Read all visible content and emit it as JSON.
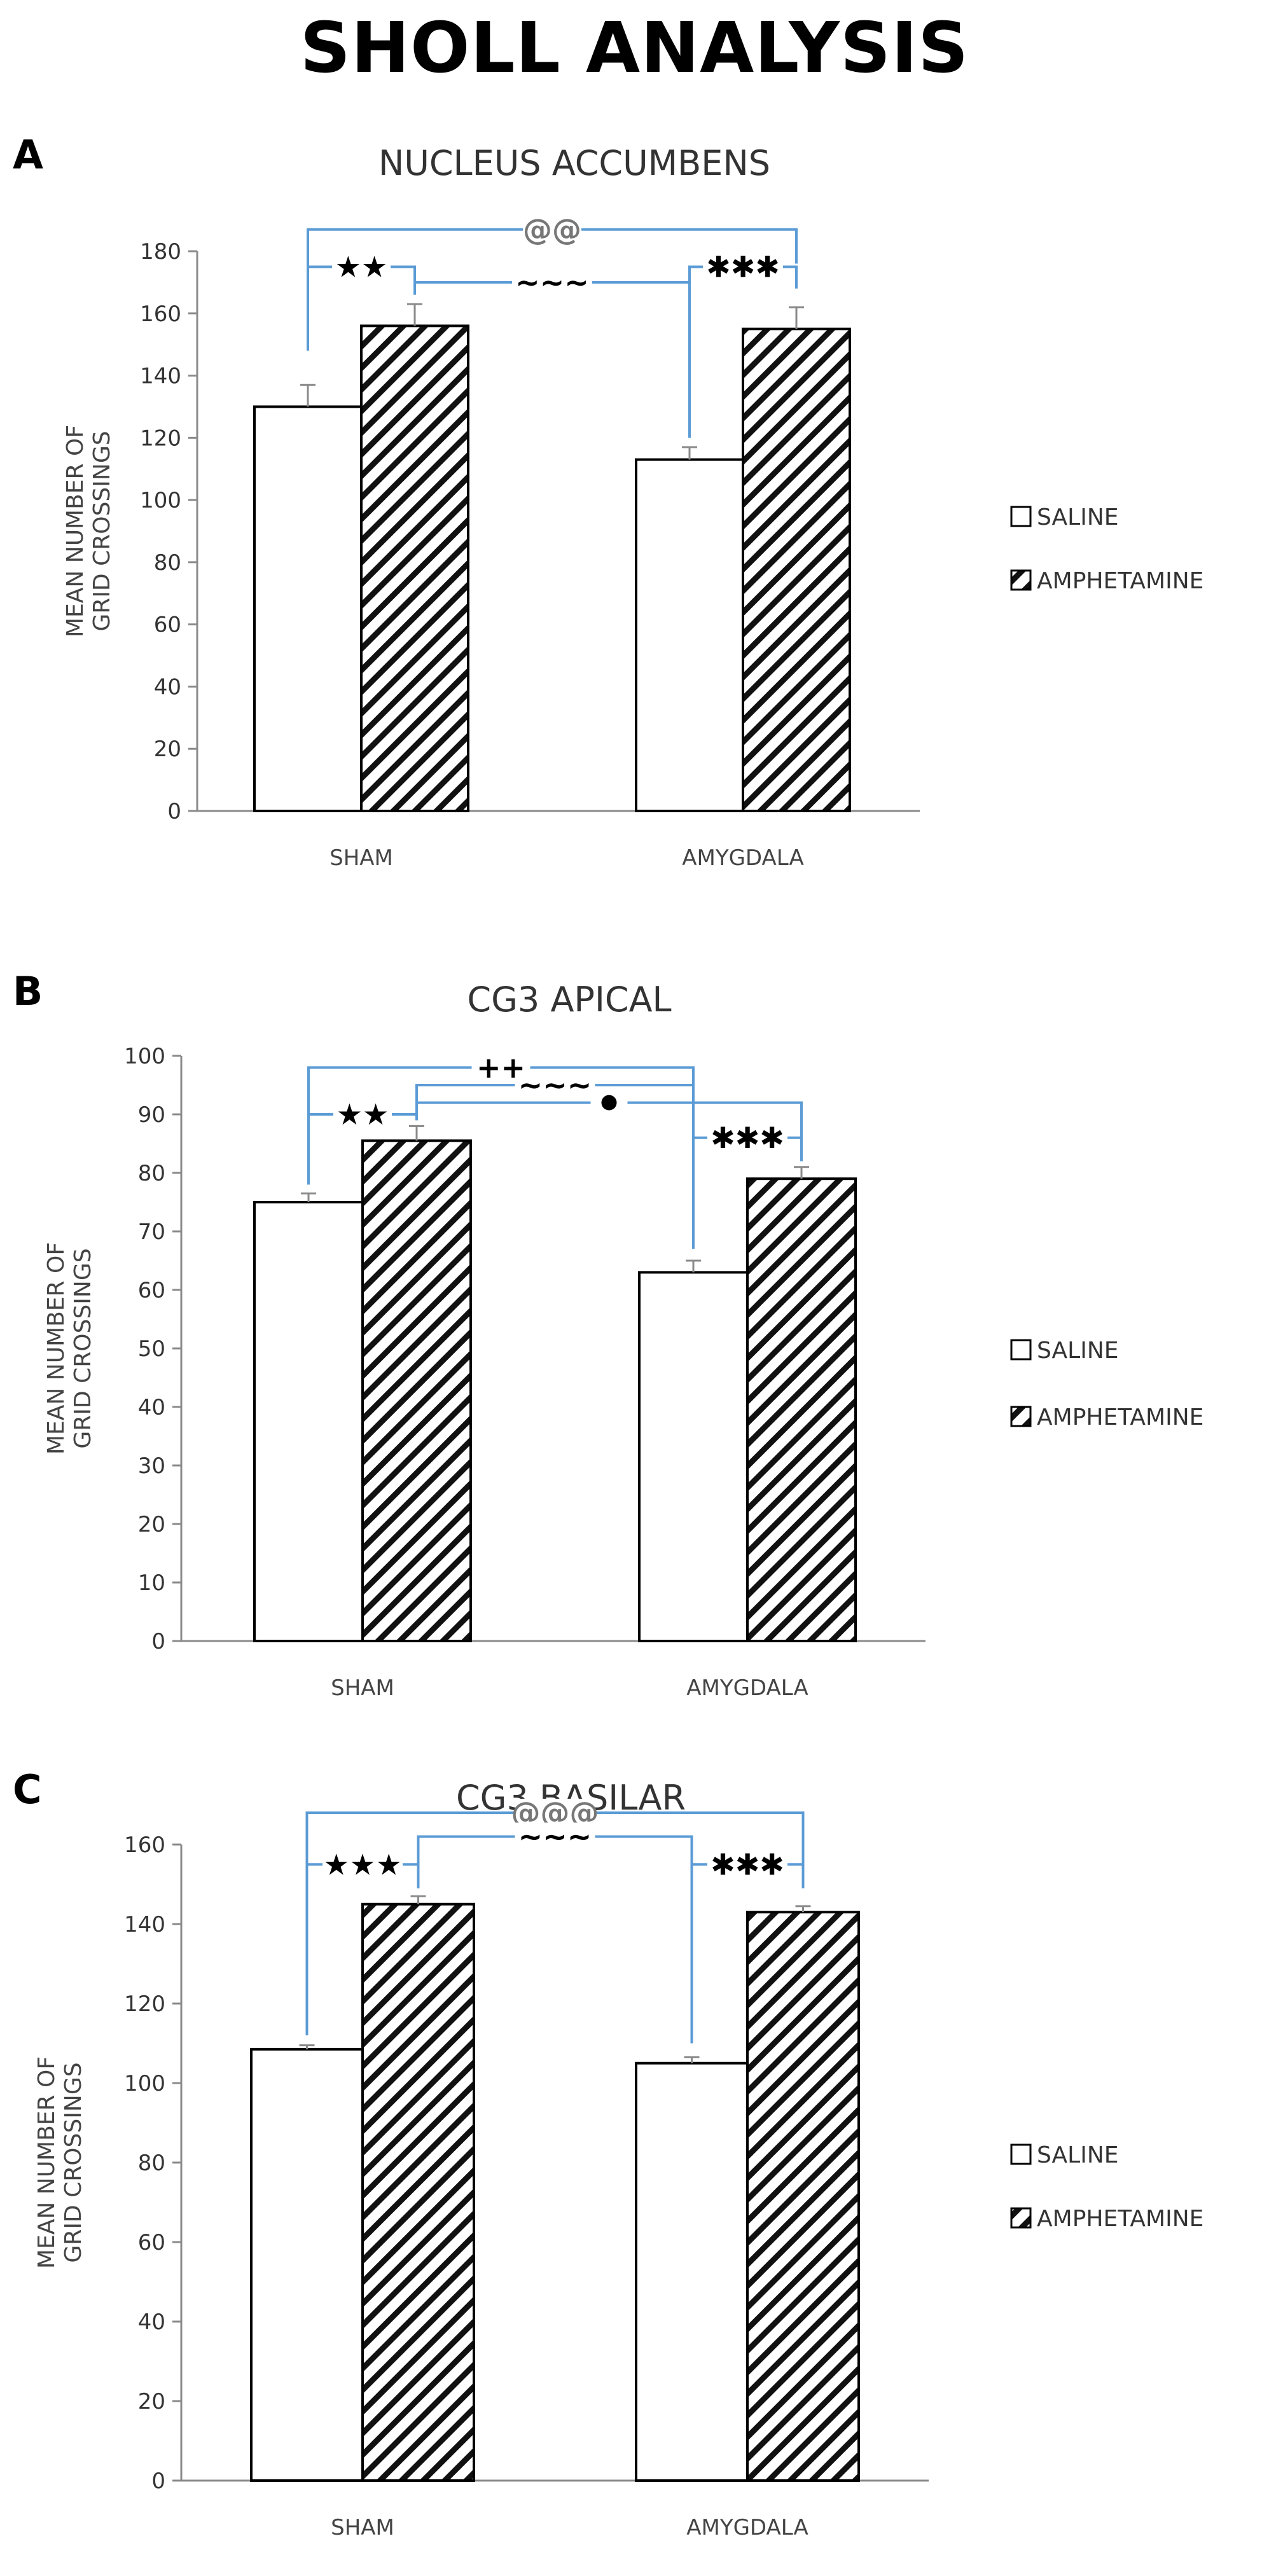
{
  "figure": {
    "title": "SHOLL ANALYSIS"
  },
  "chart_data": [
    {
      "type": "bar",
      "panel_label": "A",
      "title": "NUCLEUS ACCUMBENS",
      "ylabel": [
        "MEAN NUMBER OF",
        "GRID CROSSINGS"
      ],
      "xlabel": "",
      "ylim": [
        0,
        180
      ],
      "yticks": [
        0,
        20,
        40,
        60,
        80,
        100,
        120,
        140,
        160,
        180
      ],
      "categories": [
        "SHAM",
        "AMYGDALA"
      ],
      "series": [
        {
          "name": "SALINE",
          "values": [
            130,
            113
          ],
          "errors": [
            7,
            4
          ]
        },
        {
          "name": "AMPHETAMINE",
          "values": [
            156,
            155
          ],
          "errors": [
            7,
            7
          ]
        }
      ],
      "legend": {
        "position": "right",
        "labels": [
          "SALINE",
          "AMPHETAMINE"
        ]
      },
      "annotations": [
        {
          "text": "@@",
          "value": 187,
          "x0": "SHAM.SALINE",
          "x1": "AMYGDALA.AMPHETAMINE",
          "drop0": 148,
          "drop1": 176,
          "symbol": "text",
          "color": "#777777"
        },
        {
          "text": "★★",
          "value": 175,
          "x0": "SHAM.SALINE",
          "x1": "SHAM.AMPHETAMINE",
          "drop0": 148,
          "drop1": 168,
          "symbol": "text",
          "color": "#000000"
        },
        {
          "text": "~~~",
          "value": 170,
          "x0": "SHAM.AMPHETAMINE",
          "x1": "AMYGDALA.SALINE",
          "drop0": 166,
          "drop1": 120,
          "symbol": "text",
          "color": "#000000"
        },
        {
          "text": "✱✱✱",
          "value": 175,
          "x0": "AMYGDALA.SALINE",
          "x1": "AMYGDALA.AMPHETAMINE",
          "drop0": 120,
          "drop1": 168,
          "symbol": "text",
          "color": "#000000"
        }
      ]
    },
    {
      "type": "bar",
      "panel_label": "B",
      "title": "CG3 APICAL",
      "ylabel": [
        "MEAN NUMBER OF",
        "GRID CROSSINGS"
      ],
      "xlabel": "",
      "ylim": [
        0,
        100
      ],
      "yticks": [
        0,
        10,
        20,
        30,
        40,
        50,
        60,
        70,
        80,
        90,
        100
      ],
      "categories": [
        "SHAM",
        "AMYGDALA"
      ],
      "series": [
        {
          "name": "SALINE",
          "values": [
            75,
            63
          ],
          "errors": [
            1.5,
            2
          ]
        },
        {
          "name": "AMPHETAMINE",
          "values": [
            85.5,
            79
          ],
          "errors": [
            2.5,
            2
          ]
        }
      ],
      "legend": {
        "position": "right",
        "labels": [
          "SALINE",
          "AMPHETAMINE"
        ]
      },
      "annotations": [
        {
          "text": "++",
          "value": 98,
          "x0": "SHAM.SALINE",
          "x1": "AMYGDALA.SALINE",
          "drop0": 78,
          "drop1": 67,
          "symbol": "text",
          "color": "#000000"
        },
        {
          "text": "~~~",
          "value": 95,
          "x0": "SHAM.AMPHETAMINE",
          "x1": "AMYGDALA.SALINE",
          "drop0": 89,
          "drop1": 89,
          "symbol": "text",
          "color": "#000000"
        },
        {
          "text": "★★",
          "value": 90,
          "x0": "SHAM.SALINE",
          "x1": "SHAM.AMPHETAMINE",
          "drop0": 78,
          "drop1": 89,
          "symbol": "text",
          "color": "#000000"
        },
        {
          "text": "●",
          "value": 92,
          "x0": "SHAM.AMPHETAMINE",
          "x1": "AMYGDALA.AMPHETAMINE",
          "drop0": 89,
          "drop1": 82,
          "symbol": "dot",
          "color": "#000000"
        },
        {
          "text": "✱✱✱",
          "value": 86,
          "x0": "AMYGDALA.SALINE",
          "x1": "AMYGDALA.AMPHETAMINE",
          "drop0": 67,
          "drop1": 82,
          "symbol": "text",
          "color": "#000000"
        }
      ]
    },
    {
      "type": "bar",
      "panel_label": "C",
      "title": "CG3 BASILAR",
      "ylabel": [
        "MEAN NUMBER OF",
        "GRID CROSSINGS"
      ],
      "xlabel": "",
      "ylim": [
        0,
        160
      ],
      "yticks": [
        0,
        20,
        40,
        60,
        80,
        100,
        120,
        140,
        160
      ],
      "categories": [
        "SHAM",
        "AMYGDALA"
      ],
      "series": [
        {
          "name": "SALINE",
          "values": [
            108.5,
            105
          ],
          "errors": [
            1,
            1.5
          ]
        },
        {
          "name": "AMPHETAMINE",
          "values": [
            145,
            143
          ],
          "errors": [
            2,
            1.5
          ]
        }
      ],
      "legend": {
        "position": "right",
        "labels": [
          "SALINE",
          "AMPHETAMINE"
        ]
      },
      "annotations": [
        {
          "text": "@@@",
          "value": 168,
          "x0": "SHAM.SALINE",
          "x1": "AMYGDALA.AMPHETAMINE",
          "drop0": 112,
          "drop1": 155,
          "symbol": "text",
          "color": "#777777"
        },
        {
          "text": "~~~",
          "value": 162,
          "x0": "SHAM.AMPHETAMINE",
          "x1": "AMYGDALA.SALINE",
          "drop0": 149,
          "drop1": 110,
          "symbol": "text",
          "color": "#000000"
        },
        {
          "text": "★★★",
          "value": 155,
          "x0": "SHAM.SALINE",
          "x1": "SHAM.AMPHETAMINE",
          "drop0": 112,
          "drop1": 149,
          "symbol": "text",
          "color": "#000000"
        },
        {
          "text": "✱✱✱",
          "value": 155,
          "x0": "AMYGDALA.SALINE",
          "x1": "AMYGDALA.AMPHETAMINE",
          "drop0": 110,
          "drop1": 149,
          "symbol": "text",
          "color": "#000000"
        }
      ]
    }
  ],
  "colors": {
    "bracket": "#5b9bd5",
    "axis": "#8a8a8a",
    "bar_stroke": "#000000",
    "text": "#333333"
  }
}
